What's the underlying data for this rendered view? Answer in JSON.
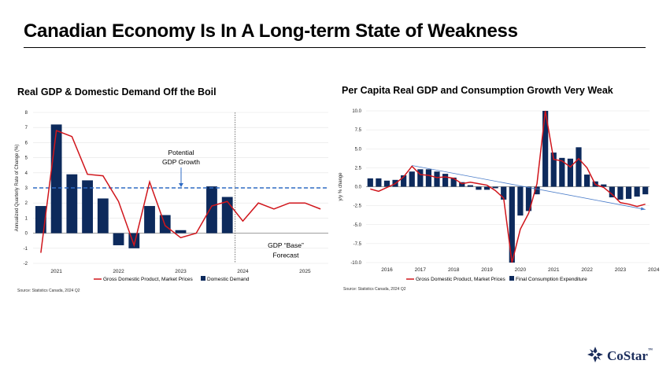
{
  "page": {
    "title": "Canadian Economy Is In A Long-term State of Weakness",
    "logo_text": "CoStar",
    "logo_tm": "™"
  },
  "colors": {
    "navy": "#0d2a5c",
    "red": "#d0151b",
    "blue_dashed": "#2e6bc4",
    "arrow": "#4a7cc9"
  },
  "chart_data": [
    {
      "type": "bar",
      "title": "Real GDP & Domestic Demand Off the Boil",
      "ylabel": "Annualized Quarterly Rate of Change (%)",
      "xlabel": "",
      "ylim": [
        -2,
        8
      ],
      "yticks": [
        "8",
        "7",
        "6",
        "5",
        "4",
        "3",
        "2",
        "1",
        "0",
        "-1",
        "-2"
      ],
      "year_labels": [
        "2021",
        "2022",
        "2023",
        "2024",
        "2025"
      ],
      "series": [
        {
          "name": "Domestic Demand",
          "kind": "bar",
          "values": [
            1.8,
            7.2,
            3.9,
            3.5,
            2.3,
            -0.8,
            -1.0,
            1.8,
            1.2,
            0.2,
            null,
            3.1,
            2.4,
            null,
            null,
            null,
            null,
            null
          ]
        },
        {
          "name": "Gross Domestic Product, Market Prices",
          "kind": "line",
          "values": [
            -1.3,
            6.8,
            6.4,
            3.9,
            3.8,
            2.1,
            -0.8,
            3.4,
            0.5,
            -0.3,
            0.0,
            1.8,
            2.1,
            0.8,
            2.0,
            1.6,
            2.0,
            2.0,
            1.6
          ]
        }
      ],
      "reference_line": {
        "value": 3.0,
        "label_line1": "Potential",
        "label_line2": "GDP Growth"
      },
      "forecast_divider_after_index": 12,
      "forecast_label_line1": "GDP “Base”",
      "forecast_label_line2": "Forecast",
      "source": "Source: Statistics Canada, 2024 Q2"
    },
    {
      "type": "bar",
      "title": "Per Capita Real GDP and Consumption Growth Very Weak",
      "ylabel": "y/y % change",
      "xlabel": "",
      "ylim": [
        -10,
        10
      ],
      "yticks": [
        "10.0",
        "7.5",
        "5.0",
        "2.5",
        "0.0",
        "-2.5",
        "-5.0",
        "-7.5",
        "-10.0"
      ],
      "year_labels": [
        "2016",
        "2017",
        "2018",
        "2019",
        "2020",
        "2021",
        "2022",
        "2023",
        "2024"
      ],
      "series": [
        {
          "name": "Final Consumption Expenditure",
          "kind": "bar",
          "values": [
            1.1,
            1.1,
            0.8,
            0.9,
            1.5,
            2.0,
            2.3,
            2.3,
            2.0,
            1.7,
            1.2,
            0.6,
            0.2,
            -0.4,
            -0.4,
            -0.2,
            -1.7,
            -10.0,
            -3.8,
            -3.2,
            -1.0,
            10.0,
            4.5,
            3.8,
            3.7,
            5.2,
            1.6,
            0.7,
            0.3,
            -1.4,
            -1.7,
            -1.6,
            -1.3,
            -1.0
          ]
        },
        {
          "name": "Gross Domestic Product, Market Prices",
          "kind": "line",
          "values": [
            -0.3,
            -0.6,
            -0.1,
            0.4,
            1.3,
            2.7,
            1.6,
            1.5,
            1.2,
            1.3,
            1.1,
            0.4,
            0.6,
            0.4,
            0.2,
            -0.5,
            -1.5,
            -10.0,
            -5.6,
            -3.5,
            0.4,
            10.0,
            3.6,
            3.4,
            2.6,
            3.7,
            2.5,
            0.3,
            -0.1,
            -1.0,
            -2.1,
            -2.3,
            -2.6,
            -2.3
          ]
        }
      ],
      "trend_arrow": {
        "from_index": 5,
        "from_value": 2.8,
        "to_index": 33,
        "to_value": -3.0
      },
      "source": "Source: Statistics Canada, 2024 Q2"
    }
  ]
}
